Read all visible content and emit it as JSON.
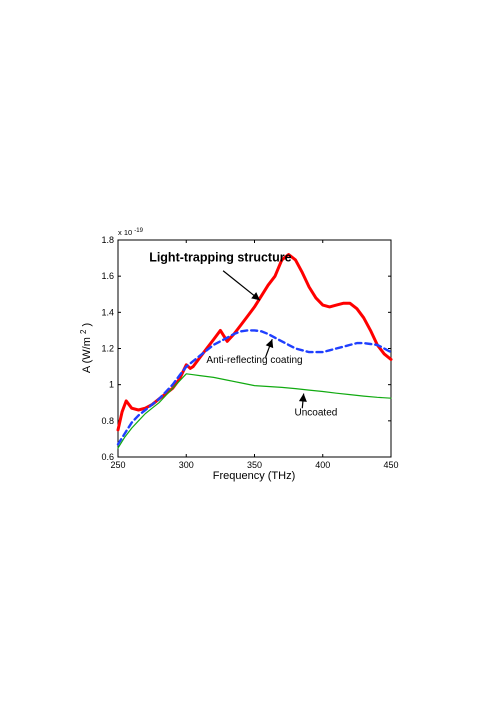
{
  "chart_data": {
    "type": "line",
    "title": "",
    "xlabel": "Frequency (THz)",
    "ylabel_main": "A  (W/m",
    "ylabel_sup": "2",
    "ylabel_close": ")",
    "y_multiplier_base": "x 10",
    "y_multiplier_exp": "-19",
    "xlim": [
      250,
      450
    ],
    "ylim": [
      0.6,
      1.8
    ],
    "grid": false,
    "xticks": [
      250,
      300,
      350,
      400,
      450
    ],
    "xtick_labels": [
      "250",
      "300",
      "350",
      "400",
      "450"
    ],
    "yticks": [
      0.6,
      0.8,
      1.0,
      1.2,
      1.4,
      1.6,
      1.8
    ],
    "ytick_labels": [
      "0.6",
      "0.8",
      "1",
      "1.2",
      "1.4",
      "1.6",
      "1.8"
    ],
    "series": [
      {
        "key": "light_trapping",
        "color": "#ff0000",
        "style": "solid-thick",
        "x": [
          250,
          253,
          256,
          260,
          265,
          270,
          275,
          280,
          285,
          290,
          295,
          300,
          303,
          305,
          310,
          315,
          320,
          325,
          330,
          335,
          340,
          345,
          350,
          355,
          360,
          365,
          370,
          375,
          380,
          385,
          390,
          395,
          400,
          405,
          410,
          415,
          420,
          425,
          430,
          435,
          440,
          445,
          450
        ],
        "y": [
          0.75,
          0.85,
          0.91,
          0.87,
          0.86,
          0.87,
          0.89,
          0.92,
          0.95,
          0.98,
          1.03,
          1.11,
          1.09,
          1.1,
          1.15,
          1.2,
          1.25,
          1.3,
          1.24,
          1.28,
          1.33,
          1.38,
          1.43,
          1.49,
          1.55,
          1.6,
          1.69,
          1.72,
          1.69,
          1.62,
          1.54,
          1.48,
          1.44,
          1.43,
          1.44,
          1.45,
          1.45,
          1.42,
          1.37,
          1.3,
          1.22,
          1.17,
          1.14
        ]
      },
      {
        "key": "anti_reflecting",
        "color": "#1f3fff",
        "style": "dashed",
        "x": [
          250,
          255,
          260,
          265,
          270,
          275,
          280,
          285,
          290,
          295,
          300,
          305,
          310,
          315,
          320,
          325,
          330,
          335,
          340,
          345,
          350,
          355,
          360,
          365,
          370,
          375,
          380,
          385,
          390,
          395,
          400,
          405,
          410,
          415,
          420,
          425,
          430,
          435,
          440,
          445,
          450
        ],
        "y": [
          0.67,
          0.73,
          0.79,
          0.83,
          0.86,
          0.89,
          0.92,
          0.96,
          1.0,
          1.05,
          1.1,
          1.13,
          1.16,
          1.19,
          1.22,
          1.24,
          1.26,
          1.28,
          1.295,
          1.3,
          1.3,
          1.295,
          1.28,
          1.26,
          1.24,
          1.22,
          1.2,
          1.19,
          1.18,
          1.18,
          1.18,
          1.19,
          1.2,
          1.21,
          1.22,
          1.23,
          1.23,
          1.225,
          1.22,
          1.2,
          1.18
        ]
      },
      {
        "key": "uncoated",
        "color": "#11aa11",
        "style": "solid-thin",
        "x": [
          250,
          255,
          260,
          265,
          270,
          275,
          280,
          285,
          290,
          295,
          300,
          305,
          310,
          320,
          330,
          340,
          350,
          360,
          370,
          380,
          390,
          400,
          410,
          420,
          430,
          440,
          450
        ],
        "y": [
          0.65,
          0.71,
          0.76,
          0.8,
          0.84,
          0.87,
          0.9,
          0.94,
          0.98,
          1.02,
          1.06,
          1.055,
          1.05,
          1.04,
          1.025,
          1.01,
          0.995,
          0.99,
          0.985,
          0.978,
          0.97,
          0.962,
          0.953,
          0.945,
          0.937,
          0.93,
          0.925
        ]
      }
    ],
    "annotations": [
      {
        "key": "light_trapping",
        "text": "Light-trapping structure",
        "bold": true
      },
      {
        "key": "anti_reflecting",
        "text": "Anti-reflecting coating",
        "bold": false
      },
      {
        "key": "uncoated",
        "text": "Uncoated",
        "bold": false
      }
    ]
  }
}
